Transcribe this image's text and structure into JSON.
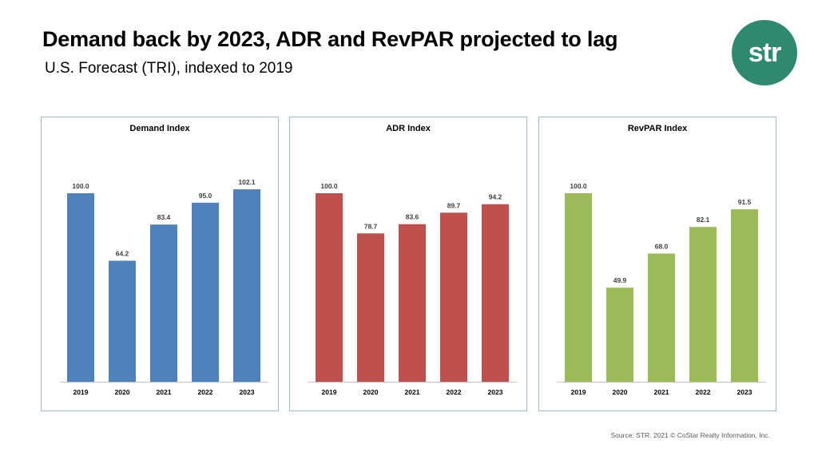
{
  "header": {
    "title": "Demand back by 2023, ADR and RevPAR projected to lag",
    "subtitle": "U.S. Forecast (TRI), indexed to 2019"
  },
  "logo": {
    "text": "str",
    "color": "#2e8a6e"
  },
  "source": "Source: STR. 2021 © CoStar Realty Information, Inc.",
  "chart_data": [
    {
      "type": "bar",
      "title": "Demand Index",
      "categories": [
        "2019",
        "2020",
        "2021",
        "2022",
        "2023"
      ],
      "values": [
        100.0,
        64.2,
        83.4,
        95.0,
        102.1
      ],
      "labels": [
        "100.0",
        "64.2",
        "83.4",
        "95.0",
        "102.1"
      ],
      "color": "#4f81bd",
      "ylim": [
        0,
        110
      ],
      "grid": false
    },
    {
      "type": "bar",
      "title": "ADR Index",
      "categories": [
        "2019",
        "2020",
        "2021",
        "2022",
        "2023"
      ],
      "values": [
        100.0,
        78.7,
        83.6,
        89.7,
        94.2
      ],
      "labels": [
        "100.0",
        "78.7",
        "83.6",
        "89.7",
        "94.2"
      ],
      "color": "#c0504d",
      "ylim": [
        0,
        110
      ],
      "grid": false
    },
    {
      "type": "bar",
      "title": "RevPAR Index",
      "categories": [
        "2019",
        "2020",
        "2021",
        "2022",
        "2023"
      ],
      "values": [
        100.0,
        49.9,
        68.0,
        82.1,
        91.5
      ],
      "labels": [
        "100.0",
        "49.9",
        "68.0",
        "82.1",
        "91.5"
      ],
      "color": "#9bbb59",
      "ylim": [
        0,
        110
      ],
      "grid": false
    }
  ]
}
